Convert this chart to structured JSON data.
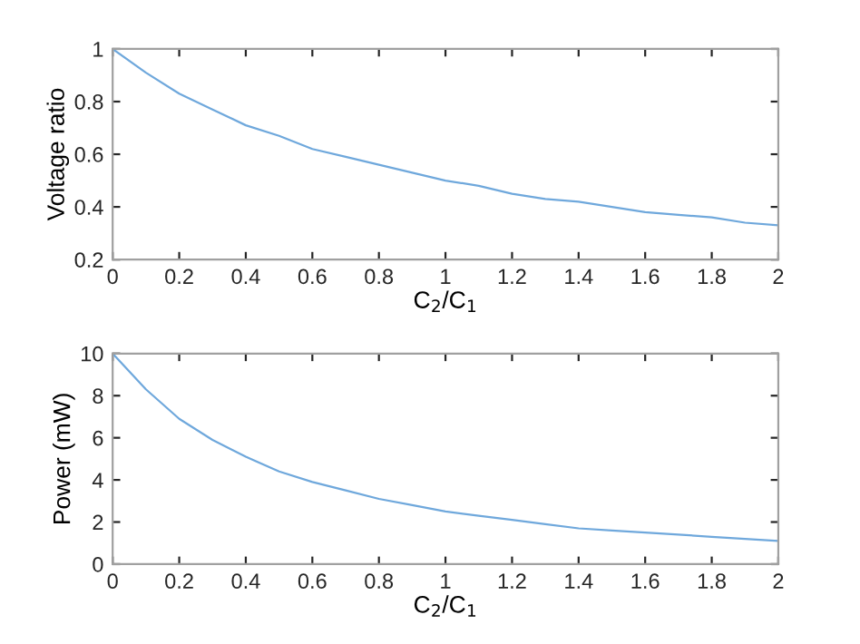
{
  "chart_data": [
    {
      "type": "line",
      "xlabel": "C$_{2}$/C$_{1}$",
      "ylabel": "Voltage ratio",
      "xlim": [
        0,
        2
      ],
      "ylim": [
        0.2,
        1
      ],
      "xticks": [
        0,
        0.2,
        0.4,
        0.6,
        0.8,
        1,
        1.2,
        1.4,
        1.6,
        1.8,
        2
      ],
      "yticks": [
        0.2,
        0.4,
        0.6,
        0.8,
        1
      ],
      "grid": false,
      "legend": false,
      "series": [
        {
          "color": "#6fa8dc",
          "x": [
            0,
            0.1,
            0.2,
            0.3,
            0.4,
            0.5,
            0.6,
            0.7,
            0.8,
            0.9,
            1,
            1.1,
            1.2,
            1.3,
            1.4,
            1.5,
            1.6,
            1.7,
            1.8,
            1.9,
            2
          ],
          "values": [
            1,
            0.91,
            0.83,
            0.77,
            0.71,
            0.67,
            0.62,
            0.59,
            0.56,
            0.53,
            0.5,
            0.48,
            0.45,
            0.43,
            0.42,
            0.4,
            0.38,
            0.37,
            0.36,
            0.34,
            0.33
          ]
        }
      ]
    },
    {
      "type": "line",
      "xlabel": "C$_{2}$/C$_{1}$",
      "ylabel": "Power (mW)",
      "xlim": [
        0,
        2
      ],
      "ylim": [
        0,
        10
      ],
      "xticks": [
        0,
        0.2,
        0.4,
        0.6,
        0.8,
        1,
        1.2,
        1.4,
        1.6,
        1.8,
        2
      ],
      "yticks": [
        0,
        2,
        4,
        6,
        8,
        10
      ],
      "grid": false,
      "legend": false,
      "series": [
        {
          "color": "#6fa8dc",
          "x": [
            0,
            0.1,
            0.2,
            0.3,
            0.4,
            0.5,
            0.6,
            0.7,
            0.8,
            0.9,
            1,
            1.1,
            1.2,
            1.3,
            1.4,
            1.5,
            1.6,
            1.7,
            1.8,
            1.9,
            2
          ],
          "values": [
            10,
            8.3,
            6.9,
            5.9,
            5.1,
            4.4,
            3.9,
            3.5,
            3.1,
            2.8,
            2.5,
            2.3,
            2.1,
            1.9,
            1.7,
            1.6,
            1.5,
            1.4,
            1.3,
            1.2,
            1.1
          ]
        }
      ]
    }
  ]
}
